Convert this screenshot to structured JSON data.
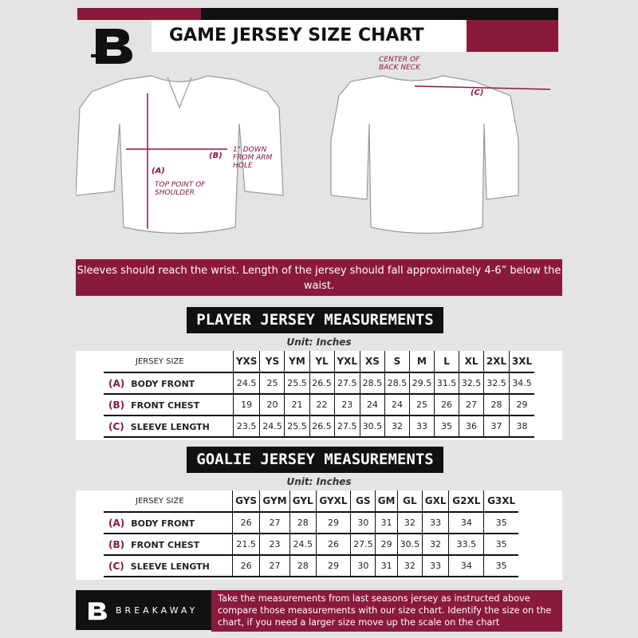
{
  "header": {
    "title": "GAME JERSEY SIZE CHART",
    "logo_letter": "B"
  },
  "diagram": {
    "label_a": "(A)",
    "label_a_note": "TOP POINT OF SHOULDER",
    "label_b": "(B)",
    "label_b_note": "1\" DOWN FROM ARM HOLE",
    "label_c": "(C)",
    "label_c_note": "CENTER OF BACK NECK"
  },
  "banner": "Sleeves should reach the wrist. Length of the jersey should fall approximately 4-6” below the waist.",
  "player": {
    "title": "PLAYER JERSEY MEASUREMENTS",
    "unit": "Unit: Inches",
    "size_header": "JERSEY SIZE",
    "sizes": [
      "YXS",
      "YS",
      "YM",
      "YL",
      "YXL",
      "XS",
      "S",
      "M",
      "L",
      "XL",
      "2XL",
      "3XL"
    ],
    "rows": [
      {
        "key": "(A)",
        "label": "BODY FRONT",
        "values": [
          "24.5",
          "25",
          "25.5",
          "26.5",
          "27.5",
          "28.5",
          "28.5",
          "29.5",
          "31.5",
          "32.5",
          "32.5",
          "34.5"
        ]
      },
      {
        "key": "(B)",
        "label": "FRONT CHEST",
        "values": [
          "19",
          "20",
          "21",
          "22",
          "23",
          "24",
          "24",
          "25",
          "26",
          "27",
          "28",
          "29"
        ]
      },
      {
        "key": "(C)",
        "label": "SLEEVE LENGTH",
        "values": [
          "23.5",
          "24.5",
          "25.5",
          "26.5",
          "27.5",
          "30.5",
          "32",
          "33",
          "35",
          "36",
          "37",
          "38"
        ]
      }
    ]
  },
  "goalie": {
    "title": "GOALIE JERSEY MEASUREMENTS",
    "unit": "Unit: Inches",
    "size_header": "JERSEY SIZE",
    "sizes": [
      "GYS",
      "GYM",
      "GYL",
      "GYXL",
      "GS",
      "GM",
      "GL",
      "GXL",
      "G2XL",
      "G3XL"
    ],
    "rows": [
      {
        "key": "(A)",
        "label": "BODY FRONT",
        "values": [
          "26",
          "27",
          "28",
          "29",
          "30",
          "31",
          "32",
          "33",
          "34",
          "35"
        ]
      },
      {
        "key": "(B)",
        "label": "FRONT CHEST",
        "values": [
          "21.5",
          "23",
          "24.5",
          "26",
          "27.5",
          "29",
          "30.5",
          "32",
          "33.5",
          "35"
        ]
      },
      {
        "key": "(C)",
        "label": "SLEEVE LENGTH",
        "values": [
          "26",
          "27",
          "28",
          "29",
          "30",
          "31",
          "32",
          "33",
          "34",
          "35"
        ]
      }
    ]
  },
  "footer": {
    "brand": "BREAKAWAY",
    "note": "Take the measurements from last seasons jersey as instructed above compare those measurements  with our size chart. Identify the size on the chart, if you need a larger size move up the scale on the chart"
  },
  "colors": {
    "accent": "#8a1a3a",
    "dark": "#111111",
    "background": "#e4e4e4"
  }
}
